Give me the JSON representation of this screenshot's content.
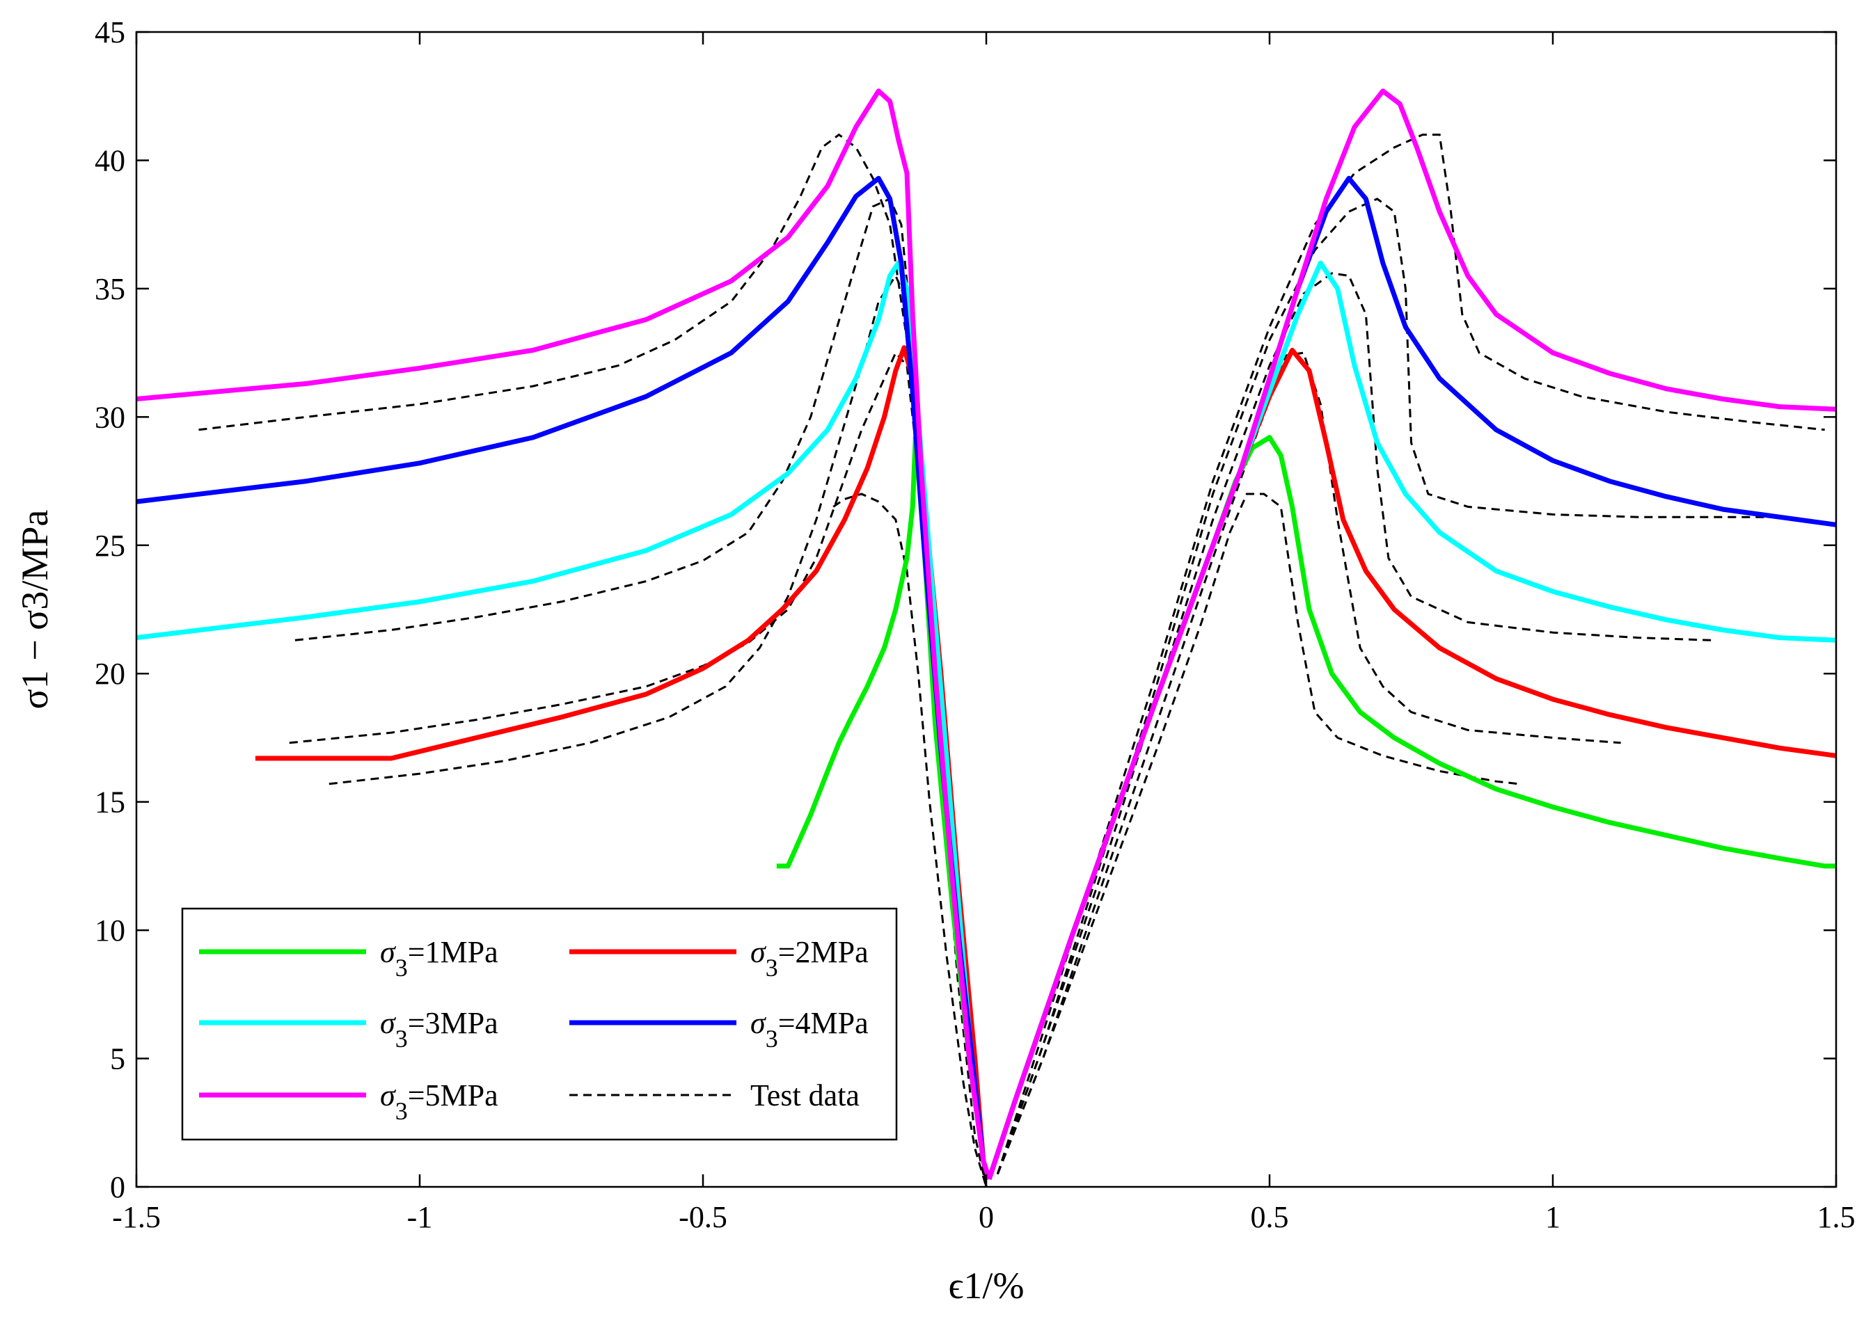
{
  "chart_data": {
    "type": "line",
    "title": "",
    "xlabel": "ϵ1/%",
    "ylabel": "σ1 − σ3/MPa",
    "xlim": [
      -1.5,
      1.5
    ],
    "ylim": [
      0,
      45
    ],
    "xticks": [
      -1.5,
      -1,
      -0.5,
      0,
      0.5,
      1,
      1.5
    ],
    "xtick_labels": [
      "-1.5",
      "-1",
      "-0.5",
      "0",
      "0.5",
      "1",
      "1.5"
    ],
    "yticks": [
      0,
      5,
      10,
      15,
      20,
      25,
      30,
      35,
      40,
      45
    ],
    "ytick_labels": [
      "0",
      "5",
      "10",
      "15",
      "20",
      "25",
      "30",
      "35",
      "40",
      "45"
    ],
    "grid": false,
    "legend_position": "bottom-left",
    "series": [
      {
        "name": "σ3=1MPa",
        "legend_sub": "3",
        "legend_value": "=1MPa",
        "color": "#00ee00",
        "style": "solid",
        "x": [
          -0.37,
          -0.35,
          -0.31,
          -0.28,
          -0.26,
          -0.24,
          -0.21,
          -0.18,
          -0.16,
          -0.14,
          -0.13,
          -0.125,
          -0.11,
          -0.09,
          -0.06,
          -0.03,
          -0.005,
          0.005
        ],
        "y": [
          12.5,
          12.5,
          14.5,
          16.2,
          17.3,
          18.2,
          19.5,
          21.0,
          22.5,
          24.5,
          26.5,
          29.2,
          25.0,
          18.0,
          11.0,
          5.0,
          1.0,
          0.3
        ],
        "x2": [
          0.005,
          0.05,
          0.1,
          0.15,
          0.2,
          0.25,
          0.3,
          0.35,
          0.4,
          0.44,
          0.47,
          0.5,
          0.52,
          0.54,
          0.57,
          0.61,
          0.66,
          0.72,
          0.8,
          0.9,
          1.0,
          1.1,
          1.2,
          1.3,
          1.4,
          1.48,
          1.5
        ],
        "y2": [
          0.3,
          3.3,
          6.5,
          9.7,
          12.8,
          15.9,
          19.0,
          22.0,
          25.0,
          27.5,
          28.8,
          29.2,
          28.5,
          26.5,
          22.5,
          20.0,
          18.5,
          17.5,
          16.5,
          15.5,
          14.8,
          14.2,
          13.7,
          13.2,
          12.8,
          12.5,
          12.5
        ]
      },
      {
        "name": "σ3=2MPa",
        "legend_sub": "3",
        "legend_value": "=2MPa",
        "color": "#ff0000",
        "style": "solid",
        "x": [
          -1.29,
          -1.05,
          -0.9,
          -0.75,
          -0.6,
          -0.5,
          -0.42,
          -0.36,
          -0.3,
          -0.25,
          -0.21,
          -0.18,
          -0.16,
          -0.145,
          -0.13,
          -0.11,
          -0.08,
          -0.05,
          -0.02,
          -0.005,
          0.005
        ],
        "y": [
          16.7,
          16.7,
          17.5,
          18.3,
          19.2,
          20.2,
          21.3,
          22.5,
          24.0,
          26.0,
          28.0,
          30.0,
          31.8,
          32.7,
          31.5,
          27.0,
          20.0,
          12.0,
          5.0,
          1.0,
          0.3
        ],
        "x2": [
          0.005,
          0.05,
          0.1,
          0.15,
          0.2,
          0.25,
          0.3,
          0.35,
          0.4,
          0.45,
          0.5,
          0.54,
          0.57,
          0.6,
          0.63,
          0.67,
          0.72,
          0.8,
          0.9,
          1.0,
          1.1,
          1.2,
          1.3,
          1.4,
          1.5
        ],
        "y2": [
          0.3,
          3.3,
          6.5,
          9.7,
          12.8,
          15.9,
          19.0,
          22.0,
          25.0,
          28.0,
          30.8,
          32.6,
          31.8,
          29.0,
          26.0,
          24.0,
          22.5,
          21.0,
          19.8,
          19.0,
          18.4,
          17.9,
          17.5,
          17.1,
          16.8
        ]
      },
      {
        "name": "σ3=3MPa",
        "legend_sub": "3",
        "legend_value": "=3MPa",
        "color": "#00ffff",
        "style": "solid",
        "x": [
          -1.5,
          -1.2,
          -1.0,
          -0.8,
          -0.6,
          -0.45,
          -0.35,
          -0.28,
          -0.23,
          -0.19,
          -0.17,
          -0.155,
          -0.14,
          -0.12,
          -0.09,
          -0.06,
          -0.03,
          -0.005,
          0.005
        ],
        "y": [
          21.4,
          22.2,
          22.8,
          23.6,
          24.8,
          26.2,
          27.8,
          29.5,
          31.5,
          33.8,
          35.5,
          36.0,
          35.0,
          30.0,
          22.0,
          14.0,
          6.0,
          1.0,
          0.3
        ],
        "x2": [
          0.005,
          0.05,
          0.1,
          0.15,
          0.2,
          0.25,
          0.3,
          0.35,
          0.4,
          0.45,
          0.5,
          0.55,
          0.59,
          0.62,
          0.65,
          0.69,
          0.74,
          0.8,
          0.9,
          1.0,
          1.1,
          1.2,
          1.3,
          1.4,
          1.5
        ],
        "y2": [
          0.3,
          3.3,
          6.5,
          9.7,
          12.8,
          15.9,
          19.0,
          22.0,
          25.0,
          28.0,
          31.0,
          34.0,
          36.0,
          35.0,
          32.0,
          29.0,
          27.0,
          25.5,
          24.0,
          23.2,
          22.6,
          22.1,
          21.7,
          21.4,
          21.3
        ]
      },
      {
        "name": "σ3=4MPa",
        "legend_sub": "3",
        "legend_value": "=4MPa",
        "color": "#0000ff",
        "style": "solid",
        "x": [
          -1.5,
          -1.2,
          -1.0,
          -0.8,
          -0.6,
          -0.45,
          -0.35,
          -0.28,
          -0.23,
          -0.19,
          -0.17,
          -0.15,
          -0.13,
          -0.11,
          -0.08,
          -0.05,
          -0.02,
          -0.005,
          0.005
        ],
        "y": [
          26.7,
          27.5,
          28.2,
          29.2,
          30.8,
          32.5,
          34.5,
          36.8,
          38.6,
          39.3,
          38.5,
          36.0,
          31.0,
          25.0,
          17.0,
          10.0,
          4.0,
          1.0,
          0.3
        ],
        "x2": [
          0.005,
          0.05,
          0.1,
          0.15,
          0.2,
          0.25,
          0.3,
          0.35,
          0.4,
          0.45,
          0.5,
          0.55,
          0.6,
          0.64,
          0.67,
          0.7,
          0.74,
          0.8,
          0.9,
          1.0,
          1.1,
          1.2,
          1.3,
          1.4,
          1.5
        ],
        "y2": [
          0.3,
          3.3,
          6.5,
          9.7,
          12.8,
          15.9,
          19.0,
          22.0,
          25.0,
          28.0,
          31.5,
          35.0,
          38.0,
          39.3,
          38.5,
          36.0,
          33.5,
          31.5,
          29.5,
          28.3,
          27.5,
          26.9,
          26.4,
          26.1,
          25.8
        ]
      },
      {
        "name": "σ3=5MPa",
        "legend_sub": "3",
        "legend_value": "=5MPa",
        "color": "#ff00ff",
        "style": "solid",
        "x": [
          -1.5,
          -1.2,
          -1.0,
          -0.8,
          -0.6,
          -0.45,
          -0.35,
          -0.28,
          -0.23,
          -0.19,
          -0.17,
          -0.155,
          -0.14,
          -0.13,
          -0.115,
          -0.09,
          -0.06,
          -0.03,
          -0.005,
          0.005
        ],
        "y": [
          30.7,
          31.3,
          31.9,
          32.6,
          33.8,
          35.3,
          37.0,
          39.0,
          41.3,
          42.7,
          42.3,
          40.8,
          39.5,
          34.0,
          28.0,
          20.0,
          12.0,
          5.0,
          1.0,
          0.3
        ],
        "x2": [
          0.005,
          0.05,
          0.1,
          0.15,
          0.2,
          0.25,
          0.3,
          0.35,
          0.4,
          0.45,
          0.5,
          0.55,
          0.6,
          0.65,
          0.7,
          0.73,
          0.76,
          0.8,
          0.85,
          0.9,
          1.0,
          1.1,
          1.2,
          1.3,
          1.4,
          1.5
        ],
        "y2": [
          0.3,
          3.3,
          6.5,
          9.7,
          12.8,
          15.9,
          19.0,
          22.0,
          25.0,
          28.0,
          31.5,
          35.0,
          38.5,
          41.3,
          42.7,
          42.2,
          40.5,
          38.0,
          35.5,
          34.0,
          32.5,
          31.7,
          31.1,
          30.7,
          30.4,
          30.3
        ]
      }
    ],
    "test_data": {
      "name": "Test data",
      "color": "#000000",
      "style": "dashed",
      "curves": [
        {
          "x": [
            -0.27,
            -0.25,
            -0.22,
            -0.19,
            -0.16,
            -0.14,
            -0.12,
            -0.1,
            -0.07,
            -0.04,
            -0.02,
            0.0
          ],
          "y": [
            26.5,
            26.8,
            27.0,
            26.7,
            26.0,
            24.0,
            20.0,
            15.0,
            9.0,
            4.0,
            1.5,
            0.0
          ],
          "x2": [
            0.02,
            0.1,
            0.2,
            0.3,
            0.38,
            0.43,
            0.46,
            0.49,
            0.52,
            0.55,
            0.58,
            0.62,
            0.7,
            0.8,
            0.9,
            0.94
          ],
          "y2": [
            0.5,
            5.0,
            11.0,
            17.0,
            22.0,
            25.5,
            27.0,
            27.0,
            26.5,
            22.0,
            18.5,
            17.5,
            16.8,
            16.2,
            15.8,
            15.7
          ]
        },
        {
          "x": [
            -1.23,
            -1.05,
            -0.9,
            -0.75,
            -0.6,
            -0.5,
            -0.42,
            -0.35,
            -0.3,
            -0.26,
            -0.22,
            -0.18,
            -0.16,
            -0.14,
            -0.12,
            -0.09,
            -0.06,
            -0.03,
            0.0
          ],
          "y": [
            17.3,
            17.7,
            18.2,
            18.8,
            19.5,
            20.3,
            21.2,
            22.5,
            24.5,
            27.0,
            29.5,
            31.5,
            32.5,
            32.0,
            28.0,
            20.0,
            12.0,
            5.0,
            0.0
          ],
          "x2": [
            0.02,
            0.1,
            0.2,
            0.3,
            0.4,
            0.48,
            0.53,
            0.56,
            0.59,
            0.62,
            0.66,
            0.7,
            0.75,
            0.85,
            1.0,
            1.12
          ],
          "y2": [
            0.5,
            5.0,
            11.5,
            18.0,
            24.5,
            29.5,
            32.4,
            32.5,
            30.5,
            26.0,
            21.0,
            19.5,
            18.5,
            17.8,
            17.5,
            17.3
          ]
        },
        {
          "x": [
            -1.16,
            -1.0,
            -0.85,
            -0.7,
            -0.56,
            -0.46,
            -0.4,
            -0.35,
            -0.3,
            -0.26,
            -0.22,
            -0.19,
            -0.16,
            -0.14,
            -0.12,
            -0.09,
            -0.06,
            -0.03,
            0.0
          ],
          "y": [
            15.7,
            16.1,
            16.6,
            17.3,
            18.3,
            19.5,
            21.0,
            23.0,
            26.0,
            29.0,
            32.0,
            34.5,
            35.5,
            34.5,
            30.0,
            22.0,
            13.0,
            6.0,
            0.0
          ],
          "x2": [
            0.02,
            0.1,
            0.2,
            0.3,
            0.4,
            0.5,
            0.56,
            0.61,
            0.64,
            0.67,
            0.69,
            0.71,
            0.75,
            0.85,
            1.0,
            1.15,
            1.28
          ],
          "y2": [
            0.5,
            5.5,
            12.0,
            19.0,
            26.0,
            32.0,
            34.8,
            35.6,
            35.5,
            34.0,
            28.0,
            24.5,
            23.0,
            22.0,
            21.6,
            21.4,
            21.3
          ]
        },
        {
          "x": [
            -1.22,
            -1.05,
            -0.9,
            -0.75,
            -0.6,
            -0.5,
            -0.42,
            -0.36,
            -0.31,
            -0.27,
            -0.23,
            -0.2,
            -0.17,
            -0.15,
            -0.13,
            -0.1,
            -0.07,
            -0.04,
            -0.02,
            0.0
          ],
          "y": [
            21.3,
            21.7,
            22.2,
            22.8,
            23.6,
            24.4,
            25.5,
            27.5,
            30.0,
            33.0,
            36.0,
            38.2,
            38.5,
            37.5,
            33.0,
            25.0,
            16.0,
            8.0,
            3.0,
            0.0
          ],
          "x2": [
            0.02,
            0.1,
            0.2,
            0.3,
            0.4,
            0.5,
            0.58,
            0.64,
            0.69,
            0.72,
            0.74,
            0.75,
            0.78,
            0.85,
            1.0,
            1.15,
            1.3,
            1.38
          ],
          "y2": [
            0.5,
            5.5,
            12.5,
            19.5,
            27.0,
            33.0,
            36.5,
            38.0,
            38.5,
            38.0,
            35.0,
            29.0,
            27.0,
            26.5,
            26.2,
            26.1,
            26.1,
            26.1
          ]
        },
        {
          "x": [
            -1.39,
            -1.2,
            -1.0,
            -0.8,
            -0.65,
            -0.55,
            -0.45,
            -0.38,
            -0.33,
            -0.29,
            -0.26,
            -0.23,
            -0.2,
            -0.17,
            -0.14,
            -0.11,
            -0.08,
            -0.05,
            -0.02,
            0.0
          ],
          "y": [
            29.5,
            30.0,
            30.5,
            31.2,
            32.0,
            33.0,
            34.5,
            36.5,
            38.5,
            40.5,
            41.0,
            40.5,
            39.3,
            37.5,
            33.0,
            25.0,
            16.0,
            8.0,
            2.0,
            0.0
          ],
          "x2": [
            0.02,
            0.1,
            0.2,
            0.3,
            0.4,
            0.5,
            0.58,
            0.65,
            0.72,
            0.77,
            0.8,
            0.82,
            0.84,
            0.87,
            0.95,
            1.05,
            1.2,
            1.35,
            1.48
          ],
          "y2": [
            0.5,
            6.0,
            13.0,
            20.0,
            27.5,
            33.5,
            37.5,
            39.5,
            40.5,
            41.0,
            41.0,
            38.0,
            34.0,
            32.5,
            31.5,
            30.8,
            30.2,
            29.8,
            29.5
          ]
        }
      ]
    }
  }
}
